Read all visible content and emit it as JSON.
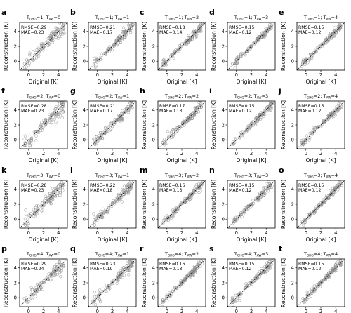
{
  "figure": {
    "axis_label_x": "Original [K]",
    "axis_label_y": "Reconstruction [K]",
    "ticks": [
      0,
      2,
      4
    ],
    "tick_labels": [
      "0",
      "2",
      "4"
    ],
    "stat_labels": {
      "rmse": "RMSE=",
      "mae": "MAE="
    },
    "point_color": "#8a8a8a"
  },
  "chart_data": [
    {
      "type": "scatter",
      "label": "a",
      "title": {
        "pre1": "T",
        "sub1": "GHG",
        "mid": "=1; T",
        "sub2": "AW",
        "post": "=0"
      },
      "rmse": "0.29",
      "mae": "0.23",
      "xlim": [
        -1.2,
        5.2
      ],
      "ylim": [
        -1.2,
        5.2
      ]
    },
    {
      "type": "scatter",
      "label": "b",
      "title": {
        "pre1": "T",
        "sub1": "GHG",
        "mid": "=1; T",
        "sub2": "AW",
        "post": "=1"
      },
      "rmse": "0.21",
      "mae": "0.17",
      "xlim": [
        -1.2,
        5.2
      ],
      "ylim": [
        -1.2,
        5.2
      ]
    },
    {
      "type": "scatter",
      "label": "c",
      "title": {
        "pre1": "T",
        "sub1": "GHG",
        "mid": "=1; T",
        "sub2": "AW",
        "post": "=2"
      },
      "rmse": "0.18",
      "mae": "0.14",
      "xlim": [
        -1.2,
        5.2
      ],
      "ylim": [
        -1.2,
        5.2
      ]
    },
    {
      "type": "scatter",
      "label": "d",
      "title": {
        "pre1": "T",
        "sub1": "GHG",
        "mid": "=1; T",
        "sub2": "AW",
        "post": "=3"
      },
      "rmse": "0.15",
      "mae": "0.12",
      "xlim": [
        -1.2,
        5.2
      ],
      "ylim": [
        -1.2,
        5.2
      ]
    },
    {
      "type": "scatter",
      "label": "e",
      "title": {
        "pre1": "T",
        "sub1": "GHG",
        "mid": "=1; T",
        "sub2": "AW",
        "post": "=4"
      },
      "rmse": "0.15",
      "mae": "0.12",
      "xlim": [
        -1.2,
        5.2
      ],
      "ylim": [
        -1.2,
        5.2
      ]
    },
    {
      "type": "scatter",
      "label": "f",
      "title": {
        "pre1": "T",
        "sub1": "GHG",
        "mid": "=2; T",
        "sub2": "AW",
        "post": "=0"
      },
      "rmse": "0.28",
      "mae": "0.23",
      "xlim": [
        -1.2,
        5.2
      ],
      "ylim": [
        -1.2,
        5.2
      ]
    },
    {
      "type": "scatter",
      "label": "g",
      "title": {
        "pre1": "T",
        "sub1": "GHG",
        "mid": "=2; T",
        "sub2": "AW",
        "post": "=1"
      },
      "rmse": "0.21",
      "mae": "0.17",
      "xlim": [
        -1.2,
        5.2
      ],
      "ylim": [
        -1.2,
        5.2
      ]
    },
    {
      "type": "scatter",
      "label": "h",
      "title": {
        "pre1": "T",
        "sub1": "GHG",
        "mid": "=2; T",
        "sub2": "AW",
        "post": "=2"
      },
      "rmse": "0.17",
      "mae": "0.13",
      "xlim": [
        -1.2,
        5.2
      ],
      "ylim": [
        -1.2,
        5.2
      ]
    },
    {
      "type": "scatter",
      "label": "i",
      "title": {
        "pre1": "T",
        "sub1": "GHG",
        "mid": "=2; T",
        "sub2": "AW",
        "post": "=3"
      },
      "rmse": "0.15",
      "mae": "0.12",
      "xlim": [
        -1.2,
        5.2
      ],
      "ylim": [
        -1.2,
        5.2
      ]
    },
    {
      "type": "scatter",
      "label": "j",
      "title": {
        "pre1": "T",
        "sub1": "GHG",
        "mid": "=2; T",
        "sub2": "AW",
        "post": "=4"
      },
      "rmse": "0.15",
      "mae": "0.12",
      "xlim": [
        -1.2,
        5.2
      ],
      "ylim": [
        -1.2,
        5.2
      ]
    },
    {
      "type": "scatter",
      "label": "k",
      "title": {
        "pre1": "T",
        "sub1": "GHG",
        "mid": "=3; T",
        "sub2": "AW",
        "post": "=0"
      },
      "rmse": "0.28",
      "mae": "0.23",
      "xlim": [
        -1.2,
        5.2
      ],
      "ylim": [
        -1.2,
        5.2
      ]
    },
    {
      "type": "scatter",
      "label": "l",
      "title": {
        "pre1": "T",
        "sub1": "GHG",
        "mid": "=3; T",
        "sub2": "AW",
        "post": "=1"
      },
      "rmse": "0.22",
      "mae": "0.18",
      "xlim": [
        -1.2,
        5.2
      ],
      "ylim": [
        -1.2,
        5.2
      ]
    },
    {
      "type": "scatter",
      "label": "m",
      "title": {
        "pre1": "T",
        "sub1": "GHG",
        "mid": "=3; T",
        "sub2": "AW",
        "post": "=2"
      },
      "rmse": "0.16",
      "mae": "0.13",
      "xlim": [
        -1.2,
        5.2
      ],
      "ylim": [
        -1.2,
        5.2
      ]
    },
    {
      "type": "scatter",
      "label": "n",
      "title": {
        "pre1": "T",
        "sub1": "GHG",
        "mid": "=3; T",
        "sub2": "AW",
        "post": "=3"
      },
      "rmse": "0.15",
      "mae": "0.12",
      "xlim": [
        -1.2,
        5.2
      ],
      "ylim": [
        -1.2,
        5.2
      ]
    },
    {
      "type": "scatter",
      "label": "o",
      "title": {
        "pre1": "T",
        "sub1": "GHG",
        "mid": "=3; T",
        "sub2": "AW",
        "post": "=4"
      },
      "rmse": "0.15",
      "mae": "0.12",
      "xlim": [
        -1.2,
        5.2
      ],
      "ylim": [
        -1.2,
        5.2
      ]
    },
    {
      "type": "scatter",
      "label": "p",
      "title": {
        "pre1": "T",
        "sub1": "GHG",
        "mid": "=4; T",
        "sub2": "AW",
        "post": "=0"
      },
      "rmse": "0.29",
      "mae": "0.24",
      "xlim": [
        -1.2,
        5.2
      ],
      "ylim": [
        -1.2,
        5.2
      ]
    },
    {
      "type": "scatter",
      "label": "q",
      "title": {
        "pre1": "T",
        "sub1": "GHG",
        "mid": "=4; T",
        "sub2": "AW",
        "post": "=1"
      },
      "rmse": "0.23",
      "mae": "0.19",
      "xlim": [
        -1.2,
        5.2
      ],
      "ylim": [
        -1.2,
        5.2
      ]
    },
    {
      "type": "scatter",
      "label": "r",
      "title": {
        "pre1": "T",
        "sub1": "GHG",
        "mid": "=4; T",
        "sub2": "AW",
        "post": "=2"
      },
      "rmse": "0.16",
      "mae": "0.13",
      "xlim": [
        -1.2,
        5.2
      ],
      "ylim": [
        -1.2,
        5.2
      ]
    },
    {
      "type": "scatter",
      "label": "s",
      "title": {
        "pre1": "T",
        "sub1": "GHG",
        "mid": "=4; T",
        "sub2": "AW",
        "post": "=3"
      },
      "rmse": "0.15",
      "mae": "0.12",
      "xlim": [
        -1.2,
        5.2
      ],
      "ylim": [
        -1.2,
        5.2
      ]
    },
    {
      "type": "scatter",
      "label": "t",
      "title": {
        "pre1": "T",
        "sub1": "GHG",
        "mid": "=4; T",
        "sub2": "AW",
        "post": "=4"
      },
      "rmse": "0.15",
      "mae": "0.12",
      "xlim": [
        -1.2,
        5.2
      ],
      "ylim": [
        -1.2,
        5.2
      ]
    }
  ]
}
